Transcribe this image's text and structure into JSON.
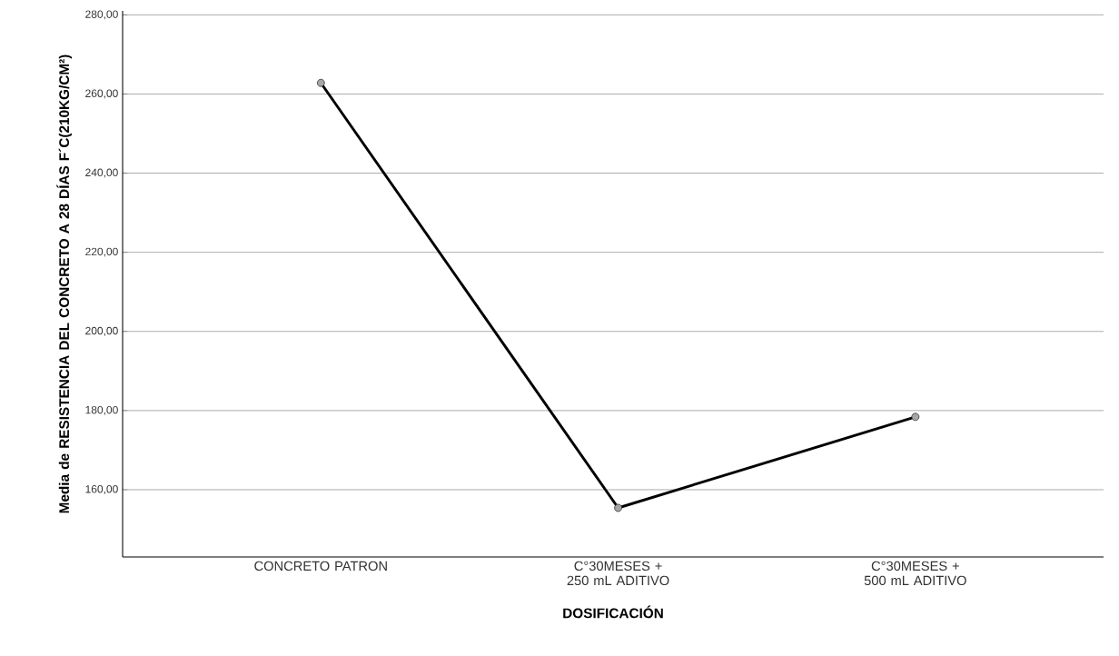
{
  "chart_data": {
    "type": "line",
    "xlabel": "DOSIFICACIÓN",
    "ylabel": "Media de RESISTENCIA DEL CONCRETO A 28 DÍAS F´C(210KG/CM²)",
    "categories": [
      "CONCRETO PATRON",
      "C°30MESES + 250 mL ADITIVO",
      "C°30MESES + 500 mL ADITIVO"
    ],
    "series": [
      {
        "color": "#000000",
        "values": [
          262.8,
          155.4,
          178.4
        ]
      }
    ],
    "ylim": [
      143,
      281
    ],
    "yticks": [
      {
        "value": 160,
        "label": "160,00"
      },
      {
        "value": 180,
        "label": "180,00"
      },
      {
        "value": 200,
        "label": "200,00"
      },
      {
        "value": 220,
        "label": "220,00"
      },
      {
        "value": 240,
        "label": "240,00"
      },
      {
        "value": 260,
        "label": "260,00"
      },
      {
        "value": 280,
        "label": "280,00"
      }
    ],
    "grid": "y",
    "marker": "circle",
    "line_style": "solid"
  }
}
